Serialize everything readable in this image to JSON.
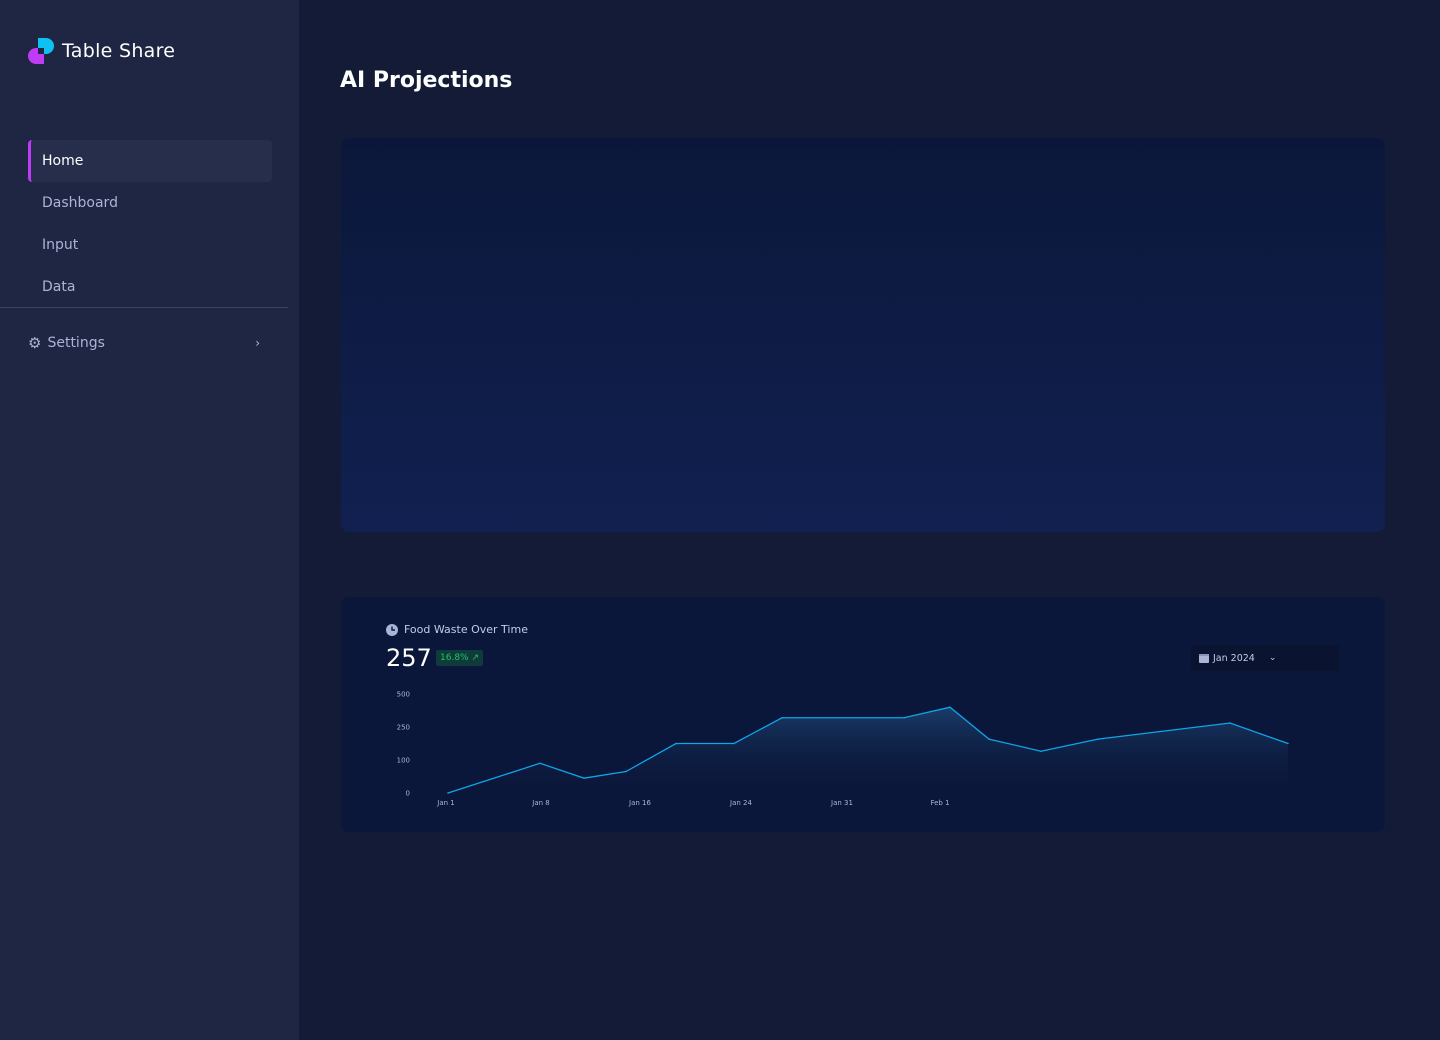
{
  "app": {
    "name": "Table Share"
  },
  "sidebar": {
    "items": [
      {
        "label": "Home",
        "active": true
      },
      {
        "label": "Dashboard"
      },
      {
        "label": "Input"
      },
      {
        "label": "Data"
      }
    ],
    "settings": {
      "label": "Settings",
      "icon": "gear-icon"
    }
  },
  "page": {
    "title": "AI Projections"
  },
  "widget": {
    "title": "Food Waste Over Time",
    "value": "257",
    "change": "16.8% ↗",
    "period": "Jan 2024"
  },
  "colors": {
    "accent": "#c03cf4",
    "brand": "#0ea5e9",
    "line": "#0ea5e9",
    "positive": "#22c55e"
  },
  "chart_data": {
    "type": "area",
    "title": "Food Waste Over Time",
    "y_ticks": [
      "0",
      "100",
      "250",
      "500"
    ],
    "x_ticks": [
      "Jan 1",
      "Jan 8",
      "Jan 16",
      "Jan 24",
      "Jan 31",
      "Feb 1"
    ],
    "values": [
      0,
      90,
      45,
      65,
      175,
      175,
      320,
      320,
      400,
      195,
      140,
      195,
      280,
      175
    ],
    "grid": false
  }
}
